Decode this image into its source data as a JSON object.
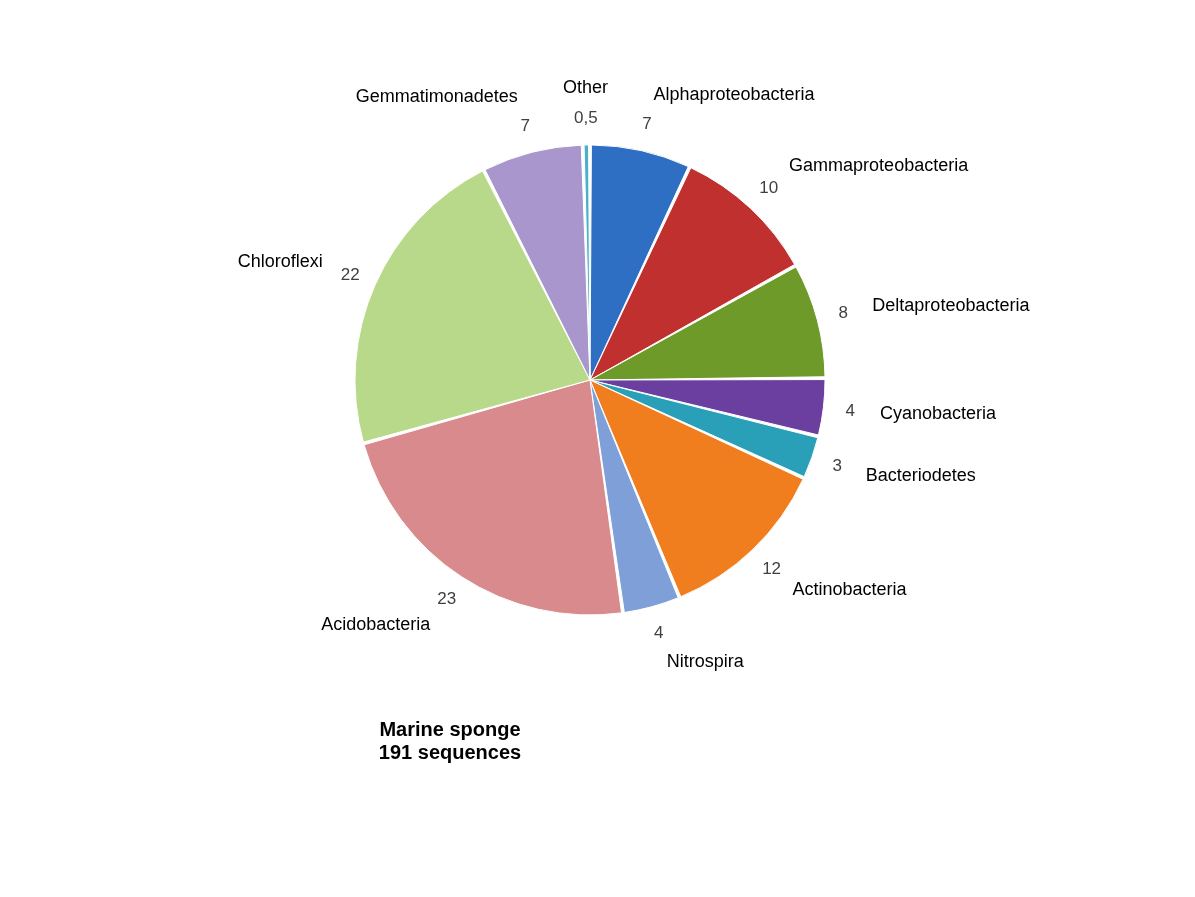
{
  "chart_data": {
    "type": "pie",
    "title": "Marine sponge",
    "subtitle": "191 sequences",
    "categories": [
      "Alphaproteobacteria",
      "Gammaproteobacteria",
      "Deltaproteobacteria",
      "Cyanobacteria",
      "Bacteriodetes",
      "Actinobacteria",
      "Nitrospira",
      "Acidobacteria",
      "Chloroflexi",
      "Gemmatimonadetes",
      "Other"
    ],
    "values": [
      7,
      10,
      8,
      4,
      3,
      12,
      4,
      23,
      22,
      7,
      0.5
    ],
    "value_labels": [
      "7",
      "10",
      "8",
      "4",
      "3",
      "12",
      "4",
      "23",
      "22",
      "7",
      "0,5"
    ],
    "colors": [
      "#2e6fc4",
      "#c0302e",
      "#6e9a2a",
      "#6b3fa0",
      "#2aa0b8",
      "#f07e1e",
      "#7f9fd8",
      "#d98a8c",
      "#b9d98a",
      "#a896cc",
      "#4bb0c8"
    ],
    "legend": false
  }
}
